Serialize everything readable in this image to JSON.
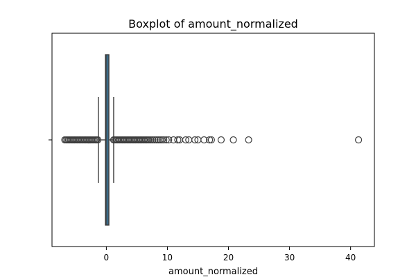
{
  "chart_data": {
    "type": "boxplot",
    "title": "Boxplot of amount_normalized",
    "xlabel": "amount_normalized",
    "ylabel": "",
    "orientation": "horizontal",
    "xlim": [
      -8.9,
      43.9
    ],
    "x_ticks": [
      0,
      10,
      20,
      30,
      40
    ],
    "tick_labels": [
      "0",
      "10",
      "20",
      "30",
      "40"
    ],
    "grid": false,
    "series": [
      {
        "q1": -0.15,
        "median": -0.05,
        "q3": 0.1,
        "whisker_low": -1.3,
        "whisker_high": 1.2,
        "fliers_low": [
          -6.8,
          -6.6,
          -6.4,
          -6.2,
          -6.0,
          -5.8,
          -5.6,
          -5.4,
          -5.2,
          -5.0,
          -4.8,
          -4.6,
          -4.4,
          -4.2,
          -4.0,
          -3.8,
          -3.6,
          -3.4,
          -3.2,
          -3.0,
          -2.8,
          -2.6,
          -2.4,
          -2.2,
          -2.0,
          -1.8,
          -1.6,
          -1.4
        ],
        "fliers_high": [
          1.2,
          1.4,
          1.6,
          1.8,
          2.0,
          2.2,
          2.4,
          2.6,
          2.8,
          3.0,
          3.2,
          3.4,
          3.6,
          3.8,
          4.0,
          4.2,
          4.4,
          4.6,
          4.8,
          5.0,
          5.2,
          5.4,
          5.6,
          5.8,
          6.0,
          6.2,
          6.4,
          6.6,
          6.8,
          7.0,
          7.3,
          7.6,
          7.9,
          8.2,
          8.5,
          8.8,
          9.1,
          9.4,
          9.8,
          10.2,
          11.0,
          11.7,
          12.0,
          13.0,
          13.5,
          14.5,
          15.0,
          16.0,
          16.9,
          17.2,
          18.8,
          20.8,
          23.3,
          41.3
        ]
      }
    ]
  }
}
